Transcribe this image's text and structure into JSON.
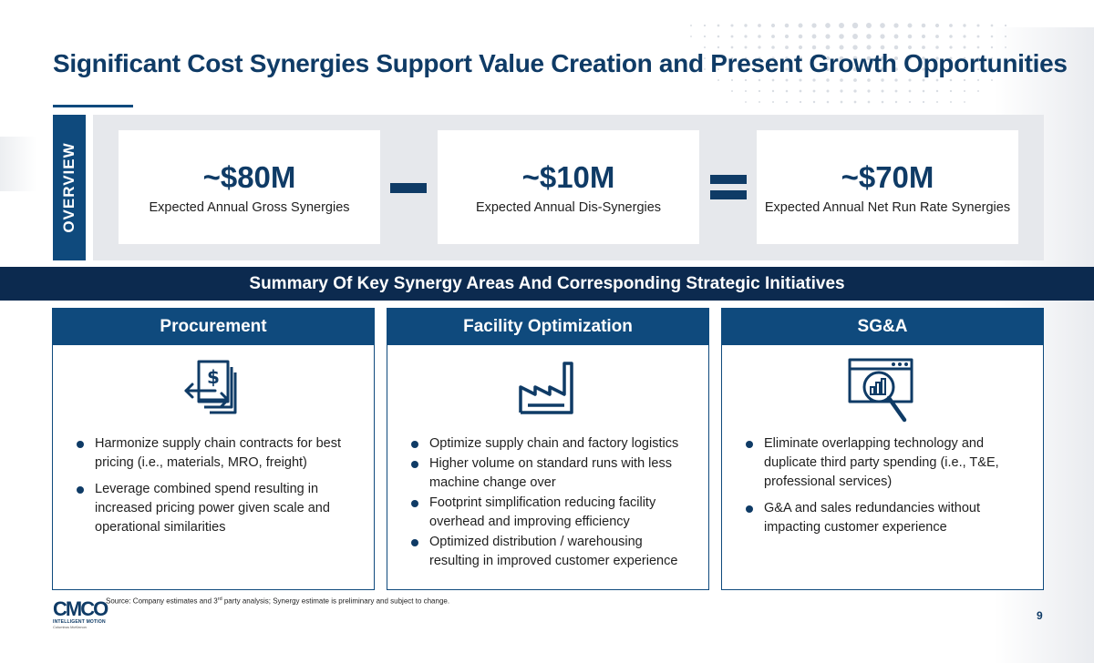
{
  "title": "Significant Cost Synergies Support Value Creation and Present Growth Opportunities",
  "overview": {
    "label": "OVERVIEW",
    "metrics": [
      {
        "value": "~$80M",
        "label": "Expected Annual Gross Synergies"
      },
      {
        "value": "~$10M",
        "label": "Expected Annual Dis-Synergies"
      },
      {
        "value": "~$70M",
        "label": "Expected Annual Net Run Rate Synergies"
      }
    ]
  },
  "summary": {
    "heading": "Summary Of Key Synergy Areas And Corresponding Strategic Initiatives"
  },
  "columns": [
    {
      "title": "Procurement",
      "icon": "contract-exchange-icon",
      "items": [
        "Harmonize supply chain contracts for best pricing (i.e., materials, MRO, freight)",
        "Leverage combined spend resulting in increased pricing power given scale and operational similarities"
      ]
    },
    {
      "title": "Facility Optimization",
      "icon": "factory-icon",
      "items": [
        "Optimize supply chain and factory logistics",
        "Higher volume on standard runs with less machine change over",
        "Footprint simplification reducing facility overhead and improving efficiency",
        "Optimized distribution / warehousing resulting in improved customer experience"
      ]
    },
    {
      "title": "SG&A",
      "icon": "analytics-magnifier-icon",
      "items": [
        "Eliminate overlapping technology and duplicate third party spending (i.e., T&E, professional services)",
        "G&A and sales redundancies without impacting customer experience"
      ]
    }
  ],
  "footer": {
    "source_prefix": "Source: Company estimates and 3",
    "source_sup": "rd",
    "source_suffix": " party analysis; Synergy estimate is preliminary and subject to change.",
    "page_number": "9",
    "logo": {
      "mark": "CMCO",
      "line1": "INTELLIGENT MOTION",
      "line2": "Columbus McKinnon"
    }
  },
  "colors": {
    "navy": "#0f3b66",
    "band": "#0c2a4f",
    "header": "#0f4a7d",
    "panel": "#e6e8ec"
  }
}
